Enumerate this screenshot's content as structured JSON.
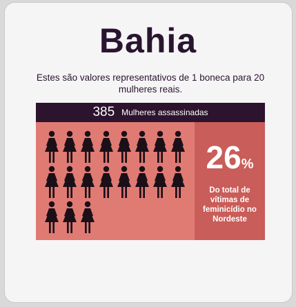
{
  "title": "Bahia",
  "subtitle": "Estes são valores representativos de 1 boneca para 20 mulheres reais.",
  "header": {
    "count": "385",
    "label": "Mulheres assassinadas"
  },
  "figures": {
    "icon": "woman-figure-icon",
    "total": 19,
    "per_row": 8
  },
  "stat": {
    "value": "26",
    "unit": "%",
    "description": "Do total de vítimas de feminicídio no Nordeste"
  },
  "colors": {
    "dark": "#2c132e",
    "figure_bg": "#e07b74",
    "stat_bg": "#c95d59",
    "figure": "#1b0f18"
  }
}
